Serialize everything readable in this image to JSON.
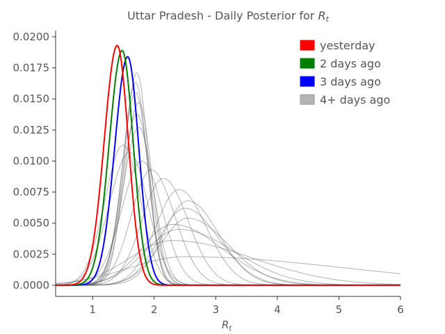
{
  "chart_data": {
    "type": "line",
    "title_prefix": "Uttar Pradesh - Daily Posterior for ",
    "title_var": "R",
    "title_sub": "t",
    "xlabel_var": "R",
    "xlabel_sub": "t",
    "xlim": [
      0.4,
      6.0
    ],
    "ylim": [
      -0.0009,
      0.0205
    ],
    "x_ticks": [
      1,
      2,
      3,
      4,
      5,
      6
    ],
    "x_tick_labels": [
      "1",
      "2",
      "3",
      "4",
      "5",
      "6"
    ],
    "y_ticks": [
      0.0,
      0.0025,
      0.005,
      0.0075,
      0.01,
      0.0125,
      0.015,
      0.0175,
      0.02
    ],
    "y_tick_labels": [
      "0.0000",
      "0.0025",
      "0.0050",
      "0.0075",
      "0.0100",
      "0.0125",
      "0.0150",
      "0.0175",
      "0.0200"
    ],
    "grid": false,
    "legend_position": "top-right",
    "legend": [
      {
        "label": "yesterday",
        "color": "#ff0000"
      },
      {
        "label": "2 days ago",
        "color": "#008000"
      },
      {
        "label": "3 days ago",
        "color": "#0000ff"
      },
      {
        "label": "4+ days ago",
        "color": "#b3b3b3"
      }
    ],
    "series": [
      {
        "group": "4+ days ago",
        "color": "#555555",
        "peak_x": 2.5,
        "peak_y": 0.0023,
        "sigma_left": 0.9,
        "sigma_right": 2.6
      },
      {
        "group": "4+ days ago",
        "color": "#555555",
        "peak_x": 2.3,
        "peak_y": 0.0036,
        "sigma_left": 0.7,
        "sigma_right": 1.3
      },
      {
        "group": "4+ days ago",
        "color": "#555555",
        "peak_x": 2.4,
        "peak_y": 0.0045,
        "sigma_left": 0.55,
        "sigma_right": 0.9
      },
      {
        "group": "4+ days ago",
        "color": "#555555",
        "peak_x": 2.3,
        "peak_y": 0.0049,
        "sigma_left": 0.5,
        "sigma_right": 0.8
      },
      {
        "group": "4+ days ago",
        "color": "#555555",
        "peak_x": 2.55,
        "peak_y": 0.0054,
        "sigma_left": 0.45,
        "sigma_right": 0.65
      },
      {
        "group": "4+ days ago",
        "color": "#555555",
        "peak_x": 2.5,
        "peak_y": 0.0062,
        "sigma_left": 0.42,
        "sigma_right": 0.55
      },
      {
        "group": "4+ days ago",
        "color": "#555555",
        "peak_x": 2.55,
        "peak_y": 0.0068,
        "sigma_left": 0.4,
        "sigma_right": 0.5
      },
      {
        "group": "4+ days ago",
        "color": "#555555",
        "peak_x": 2.4,
        "peak_y": 0.0077,
        "sigma_left": 0.38,
        "sigma_right": 0.45
      },
      {
        "group": "4+ days ago",
        "color": "#555555",
        "peak_x": 2.15,
        "peak_y": 0.0086,
        "sigma_left": 0.35,
        "sigma_right": 0.4
      },
      {
        "group": "4+ days ago",
        "color": "#555555",
        "peak_x": 1.95,
        "peak_y": 0.0093,
        "sigma_left": 0.32,
        "sigma_right": 0.38
      },
      {
        "group": "4+ days ago",
        "color": "#555555",
        "peak_x": 1.8,
        "peak_y": 0.01,
        "sigma_left": 0.33,
        "sigma_right": 0.33
      },
      {
        "group": "4+ days ago",
        "color": "#555555",
        "peak_x": 1.6,
        "peak_y": 0.0107,
        "sigma_left": 0.33,
        "sigma_right": 0.3
      },
      {
        "group": "4+ days ago",
        "color": "#555555",
        "peak_x": 1.5,
        "peak_y": 0.0113,
        "sigma_left": 0.3,
        "sigma_right": 0.28
      },
      {
        "group": "4+ days ago",
        "color": "#555555",
        "peak_x": 1.75,
        "peak_y": 0.0127,
        "sigma_left": 0.26,
        "sigma_right": 0.24
      },
      {
        "group": "4+ days ago",
        "color": "#555555",
        "peak_x": 1.72,
        "peak_y": 0.0138,
        "sigma_left": 0.24,
        "sigma_right": 0.22
      },
      {
        "group": "4+ days ago",
        "color": "#555555",
        "peak_x": 1.75,
        "peak_y": 0.0147,
        "sigma_left": 0.23,
        "sigma_right": 0.21
      },
      {
        "group": "4+ days ago",
        "color": "#555555",
        "peak_x": 1.7,
        "peak_y": 0.0155,
        "sigma_left": 0.22,
        "sigma_right": 0.2
      },
      {
        "group": "4+ days ago",
        "color": "#555555",
        "peak_x": 1.7,
        "peak_y": 0.0163,
        "sigma_left": 0.21,
        "sigma_right": 0.19
      },
      {
        "group": "4+ days ago",
        "color": "#555555",
        "peak_x": 1.72,
        "peak_y": 0.0171,
        "sigma_left": 0.2,
        "sigma_right": 0.18
      },
      {
        "group": "3 days ago",
        "color": "#0000ff",
        "peak_x": 1.57,
        "peak_y": 0.0184,
        "sigma_left": 0.21,
        "sigma_right": 0.18
      },
      {
        "group": "2 days ago",
        "color": "#008000",
        "peak_x": 1.48,
        "peak_y": 0.0189,
        "sigma_left": 0.21,
        "sigma_right": 0.18
      },
      {
        "group": "yesterday",
        "color": "#ff0000",
        "peak_x": 1.4,
        "peak_y": 0.0193,
        "sigma_left": 0.21,
        "sigma_right": 0.18
      }
    ]
  }
}
